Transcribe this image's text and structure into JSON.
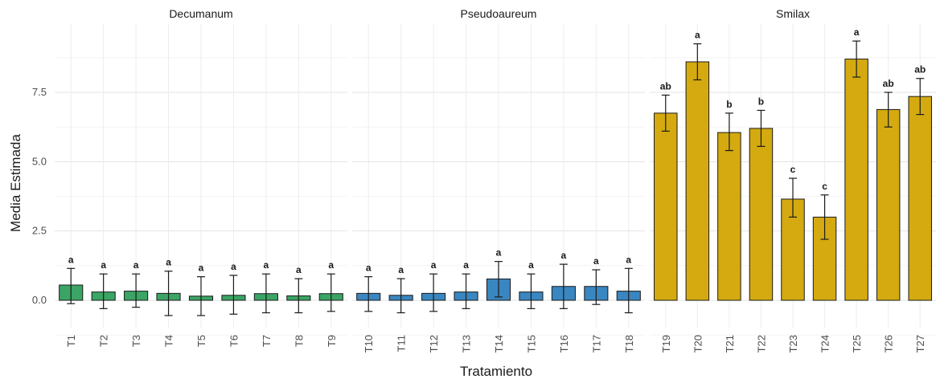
{
  "chart_data": {
    "type": "bar",
    "xlabel": "Tratamiento",
    "ylabel": "Media Estimada",
    "ylim": [
      -0.7,
      9.5
    ],
    "yticks": [
      0.0,
      2.5,
      5.0,
      7.5
    ],
    "ytick_labels": [
      "0.0",
      "2.5",
      "5.0",
      "7.5"
    ],
    "grid": true,
    "panels": [
      {
        "title": "Decumanum",
        "color": "#3aa565",
        "categories": [
          "T1",
          "T2",
          "T3",
          "T4",
          "T5",
          "T6",
          "T7",
          "T8",
          "T9"
        ],
        "values": [
          0.55,
          0.3,
          0.33,
          0.25,
          0.15,
          0.18,
          0.24,
          0.16,
          0.24
        ],
        "err_low": [
          -0.12,
          -0.3,
          -0.25,
          -0.55,
          -0.55,
          -0.5,
          -0.45,
          -0.45,
          -0.4
        ],
        "err_high": [
          1.15,
          0.95,
          0.95,
          1.05,
          0.85,
          0.9,
          0.95,
          0.78,
          0.95
        ],
        "labels": [
          "a",
          "a",
          "a",
          "a",
          "a",
          "a",
          "a",
          "a",
          "a"
        ]
      },
      {
        "title": "Pseudoaureum",
        "color": "#3a86c0",
        "categories": [
          "T10",
          "T11",
          "T12",
          "T13",
          "T14",
          "T15",
          "T16",
          "T17",
          "T18"
        ],
        "values": [
          0.25,
          0.18,
          0.25,
          0.3,
          0.77,
          0.3,
          0.5,
          0.5,
          0.33
        ],
        "err_low": [
          -0.4,
          -0.45,
          -0.4,
          -0.3,
          0.12,
          -0.3,
          -0.3,
          -0.15,
          -0.45
        ],
        "err_high": [
          0.85,
          0.78,
          0.95,
          0.95,
          1.4,
          0.95,
          1.3,
          1.1,
          1.15
        ],
        "labels": [
          "a",
          "a",
          "a",
          "a",
          "a",
          "a",
          "a",
          "a",
          "a"
        ]
      },
      {
        "title": "Smilax",
        "color": "#d4aa10",
        "categories": [
          "T19",
          "T20",
          "T21",
          "T22",
          "T23",
          "T24",
          "T25",
          "T26",
          "T27"
        ],
        "values": [
          6.75,
          8.6,
          6.05,
          6.2,
          3.65,
          3.0,
          8.7,
          6.88,
          7.35
        ],
        "err_low": [
          6.1,
          7.95,
          5.4,
          5.55,
          3.0,
          2.2,
          8.05,
          6.25,
          6.7
        ],
        "err_high": [
          7.4,
          9.25,
          6.75,
          6.85,
          4.4,
          3.8,
          9.35,
          7.5,
          8.0
        ],
        "labels": [
          "ab",
          "a",
          "b",
          "b",
          "c",
          "c",
          "a",
          "ab",
          "ab"
        ]
      }
    ]
  }
}
